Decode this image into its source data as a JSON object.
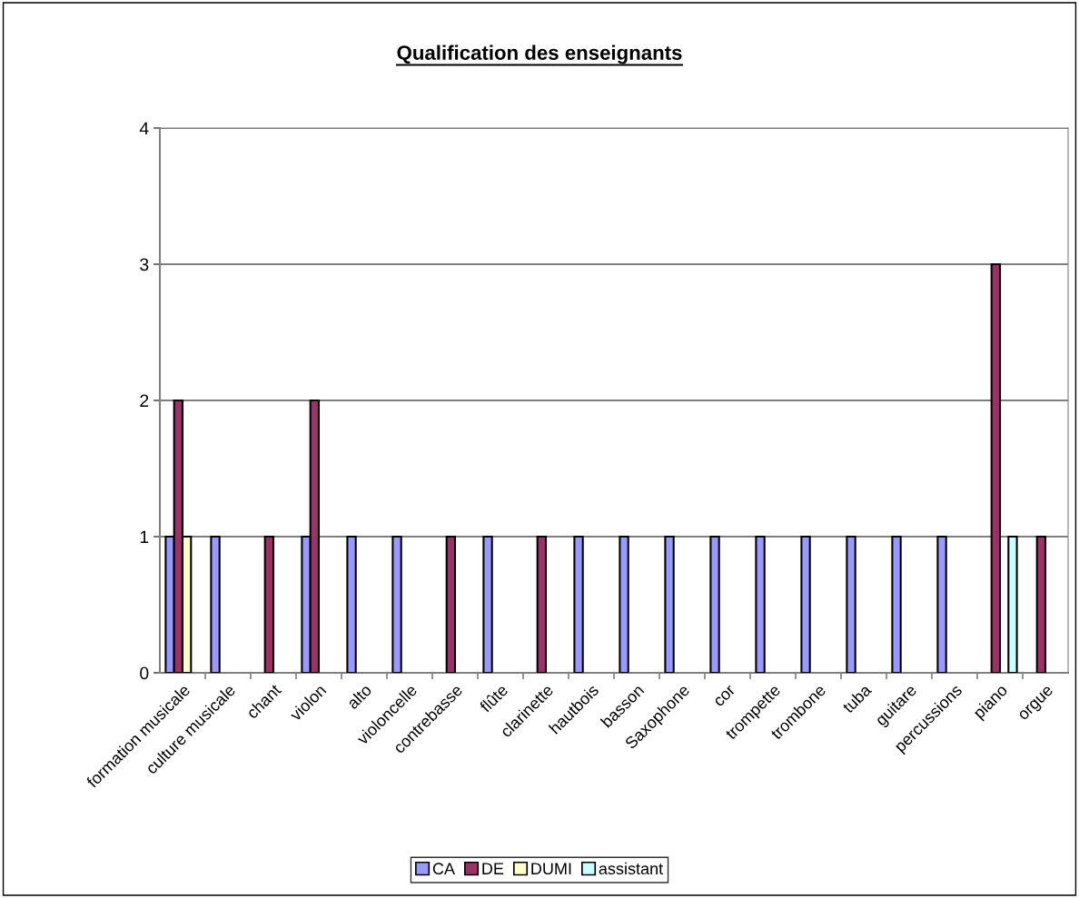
{
  "chart_data": {
    "type": "bar",
    "title": "Qualification des enseignants",
    "categories": [
      "formation musicale",
      "culture musicale",
      "chant",
      "violon",
      "alto",
      "violoncelle",
      "contrebasse",
      "flûte",
      "clarinette",
      "hautbois",
      "basson",
      "Saxophone",
      "cor",
      "trompette",
      "trombone",
      "tuba",
      "guitare",
      "percussions",
      "piano",
      "orgue"
    ],
    "series": [
      {
        "name": "CA",
        "color": "#9999ff",
        "values": [
          1,
          1,
          null,
          1,
          1,
          1,
          null,
          1,
          null,
          1,
          1,
          1,
          1,
          1,
          1,
          1,
          1,
          1,
          null,
          null
        ]
      },
      {
        "name": "DE",
        "color": "#993366",
        "values": [
          2,
          null,
          1,
          2,
          null,
          null,
          1,
          null,
          1,
          null,
          null,
          null,
          null,
          null,
          null,
          null,
          null,
          null,
          3,
          1
        ]
      },
      {
        "name": "DUMI",
        "color": "#ffffcc",
        "values": [
          1,
          null,
          null,
          null,
          null,
          null,
          null,
          null,
          null,
          null,
          null,
          null,
          null,
          null,
          null,
          null,
          null,
          null,
          null,
          null
        ]
      },
      {
        "name": "assistant",
        "color": "#ccffff",
        "values": [
          null,
          null,
          null,
          null,
          null,
          null,
          null,
          null,
          null,
          null,
          null,
          null,
          null,
          null,
          null,
          null,
          null,
          null,
          1,
          null
        ]
      }
    ],
    "ylim": [
      0,
      4
    ],
    "yticks": [
      0,
      1,
      2,
      3,
      4
    ],
    "grid": "y",
    "legend": "bottom"
  }
}
